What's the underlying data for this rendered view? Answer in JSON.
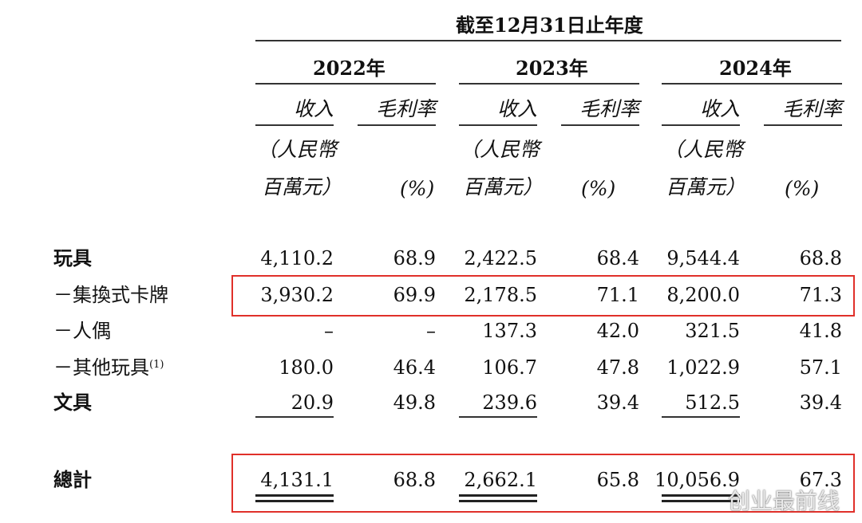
{
  "header": {
    "period": "截至12月31日止年度",
    "years": [
      "2022年",
      "2023年",
      "2024年"
    ],
    "revenue": "收入",
    "margin": "毛利率",
    "unit_rev_1": "（人民幣",
    "unit_rev_2": "百萬元）",
    "unit_margin": "(%)"
  },
  "rows": [
    {
      "label": "玩具",
      "bold": true,
      "values": [
        "4,110.2",
        "68.9",
        "2,422.5",
        "68.4",
        "9,544.4",
        "68.8"
      ]
    },
    {
      "label": "－集換式卡牌",
      "bold": false,
      "values": [
        "3,930.2",
        "69.9",
        "2,178.5",
        "71.1",
        "8,200.0",
        "71.3"
      ]
    },
    {
      "label": "－人偶",
      "bold": false,
      "values": [
        "–",
        "–",
        "137.3",
        "42.0",
        "321.5",
        "41.8"
      ]
    },
    {
      "label": "－其他玩具",
      "footnote": "(1)",
      "bold": false,
      "values": [
        "180.0",
        "46.4",
        "106.7",
        "47.8",
        "1,022.9",
        "57.1"
      ]
    },
    {
      "label": "文具",
      "bold": true,
      "values": [
        "20.9",
        "49.8",
        "239.6",
        "39.4",
        "512.5",
        "39.4"
      ]
    }
  ],
  "total": {
    "label": "總計",
    "values": [
      "4,131.1",
      "68.8",
      "2,662.1",
      "65.8",
      "10,056.9",
      "67.3"
    ]
  },
  "watermark": "创业最前线",
  "colors": {
    "highlight": "#e0302a",
    "text": "#111111"
  }
}
